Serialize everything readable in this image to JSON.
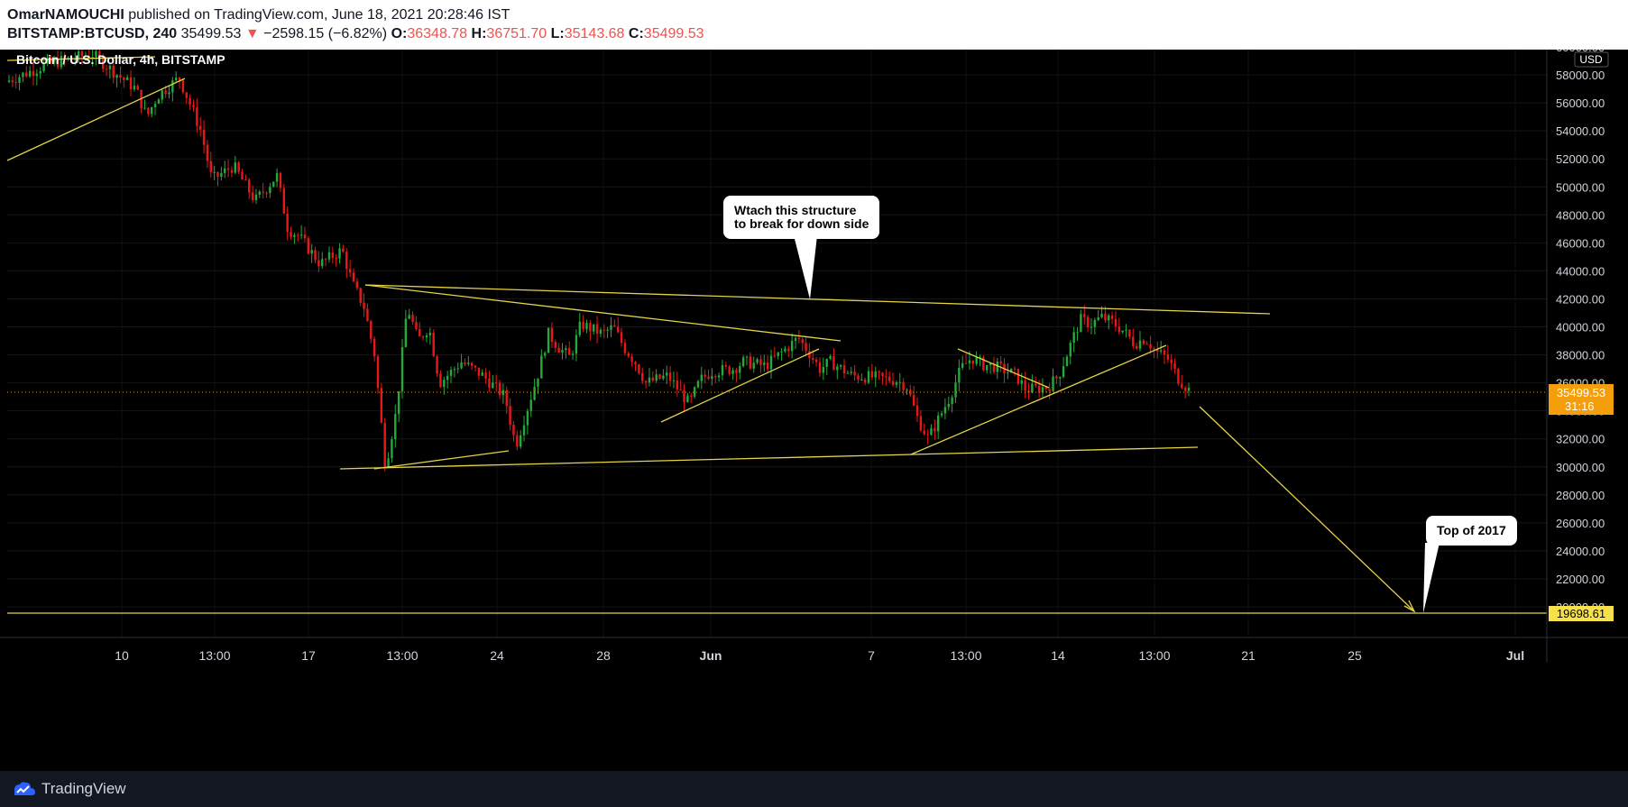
{
  "header": {
    "author": "OmarNAMOUCHI",
    "published_text": " published on TradingView.com, June 18, 2021 20:28:46 IST",
    "symbol": "BITSTAMP:BTCUSD, 240",
    "last": "35499.53",
    "change": "−2598.15 (−6.82%)",
    "o_label": "O:",
    "o": "36348.78",
    "h_label": "H:",
    "h": "36751.70",
    "l_label": "L:",
    "l": "35143.68",
    "c_label": "C:",
    "c": "35499.53"
  },
  "chart_data": {
    "type": "candlestick",
    "title": "Bitcoin / U.S. Dollar, 4h, BITSTAMP",
    "currency": "USD",
    "ylim": [
      17000,
      61000
    ],
    "y_ticks": [
      60000,
      58000,
      56000,
      54000,
      52000,
      50000,
      48000,
      46000,
      44000,
      42000,
      40000,
      38000,
      36000,
      34000,
      32000,
      30000,
      28000,
      26000,
      24000,
      22000,
      20000
    ],
    "y_tick_labels": [
      "60000.00",
      "58000.00",
      "56000.00",
      "54000.00",
      "52000.00",
      "50000.00",
      "48000.00",
      "46000.00",
      "44000.00",
      "42000.00",
      "40000.00",
      "38000.00",
      "36000.00",
      "34000.00",
      "32000.00",
      "30000.00",
      "28000.00",
      "26000.00",
      "24000.00",
      "22000.00",
      "20000.00"
    ],
    "x_ticks": [
      "10",
      "13:00",
      "17",
      "13:00",
      "24",
      "28",
      "Jun",
      "7",
      "13:00",
      "14",
      "13:00",
      "21",
      "25",
      "Jul"
    ],
    "price_series": [
      [
        0,
        57500
      ],
      [
        4,
        58800
      ],
      [
        8,
        59500
      ],
      [
        10,
        58200
      ],
      [
        12,
        57000
      ],
      [
        13,
        55000
      ],
      [
        14,
        56500
      ],
      [
        16,
        57800
      ],
      [
        18,
        54000
      ],
      [
        19,
        50500
      ],
      [
        21,
        51500
      ],
      [
        23,
        49000
      ],
      [
        25,
        50800
      ],
      [
        26,
        47000
      ],
      [
        27,
        46500
      ],
      [
        29,
        44500
      ],
      [
        31,
        45500
      ],
      [
        32,
        43000
      ],
      [
        33,
        41500
      ],
      [
        34,
        38000
      ],
      [
        35,
        30000
      ],
      [
        36,
        34000
      ],
      [
        37,
        41500
      ],
      [
        38,
        39000
      ],
      [
        39,
        40000
      ],
      [
        40,
        36000
      ],
      [
        42,
        37500
      ],
      [
        44,
        36500
      ],
      [
        46,
        35000
      ],
      [
        47,
        31500
      ],
      [
        48,
        34000
      ],
      [
        49,
        36500
      ],
      [
        50,
        39500
      ],
      [
        51,
        38500
      ],
      [
        52,
        37800
      ],
      [
        53,
        40200
      ],
      [
        55,
        39500
      ],
      [
        56,
        40000
      ],
      [
        57,
        38500
      ],
      [
        58,
        37500
      ],
      [
        59,
        36000
      ],
      [
        61,
        36500
      ],
      [
        63,
        34500
      ],
      [
        64,
        36200
      ],
      [
        65,
        36800
      ],
      [
        67,
        37000
      ],
      [
        68,
        37500
      ],
      [
        70,
        37200
      ],
      [
        72,
        38500
      ],
      [
        73,
        39200
      ],
      [
        74,
        38200
      ],
      [
        75,
        37000
      ],
      [
        76,
        37500
      ],
      [
        78,
        36500
      ],
      [
        80,
        36400
      ],
      [
        82,
        36200
      ],
      [
        83,
        35800
      ],
      [
        84,
        33500
      ],
      [
        85,
        32000
      ],
      [
        86,
        33500
      ],
      [
        87,
        35000
      ],
      [
        88,
        37000
      ],
      [
        89,
        37800
      ],
      [
        90,
        37300
      ],
      [
        91,
        37200
      ],
      [
        93,
        36600
      ],
      [
        94,
        35500
      ],
      [
        96,
        35700
      ],
      [
        97,
        36500
      ],
      [
        98,
        38500
      ],
      [
        99,
        40500
      ],
      [
        100,
        40200
      ],
      [
        101,
        40700
      ],
      [
        102,
        40300
      ],
      [
        103,
        39700
      ],
      [
        104,
        38800
      ],
      [
        105,
        39200
      ],
      [
        106,
        38200
      ],
      [
        107,
        37800
      ],
      [
        108,
        36348
      ],
      [
        109,
        35499.53
      ]
    ],
    "last_price_label": "35499.53",
    "countdown": "31:16",
    "target_label": "19698.61",
    "target_price": 19698.61,
    "annotations": [
      "Wtach this structure\nto break for down side",
      "Top of 2017"
    ]
  },
  "footer": {
    "brand": "TradingView"
  },
  "colors": {
    "up": "#26a69a",
    "up_bright": "#22ab3a",
    "down": "#ef2020",
    "trendline": "#e5d34a",
    "last_price_bg": "#f59e0b",
    "target_bg": "#f7e14b"
  }
}
